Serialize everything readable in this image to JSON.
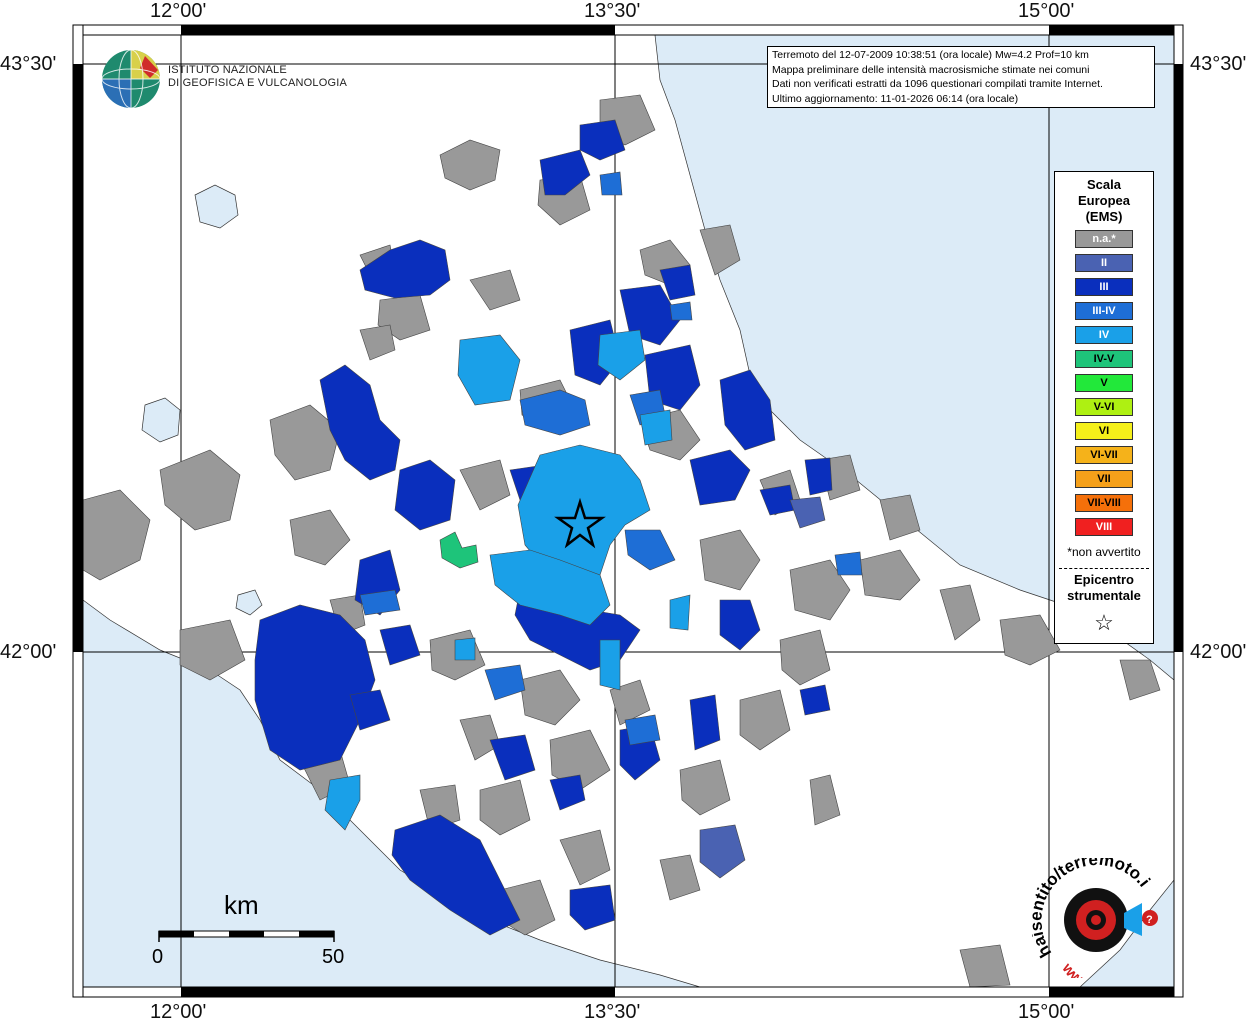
{
  "coords": {
    "top": [
      "12°00'",
      "13°30'",
      "15°00'"
    ],
    "bottom": [
      "12°00'",
      "13°30'",
      "15°00'"
    ],
    "left": [
      "43°30'",
      "42°00'"
    ],
    "right": [
      "43°30'",
      "42°00'"
    ]
  },
  "info": {
    "line1": "Terremoto del 12-07-2009 10:38:51 (ora locale) Mw=4.2 Prof=10 km",
    "line2": "Mappa preliminare delle intensità macrosismiche stimate nei comuni",
    "line3": "Dati non verificati estratti da 1096 questionari compilati tramite Internet.",
    "line4": "Ultimo aggiornamento: 11-01-2026 06:14 (ora locale)"
  },
  "ingv": {
    "line1": "ISTITUTO NAZIONALE",
    "line2": "DI GEOFISICA E VULCANOLOGIA"
  },
  "legend": {
    "title1": "Scala",
    "title2": "Europea",
    "title3": "(EMS)",
    "items": [
      {
        "label": "n.a.*",
        "color": "#999999"
      },
      {
        "label": "II",
        "color": "#4a62b2"
      },
      {
        "label": "III",
        "color": "#0a2fbd"
      },
      {
        "label": "III-IV",
        "color": "#1e6ed6"
      },
      {
        "label": "IV",
        "color": "#1aa0e8"
      },
      {
        "label": "IV-V",
        "color": "#1ec47a"
      },
      {
        "label": "V",
        "color": "#22e83a"
      },
      {
        "label": "V-VI",
        "color": "#aef012"
      },
      {
        "label": "VI",
        "color": "#f5f01a"
      },
      {
        "label": "VI-VII",
        "color": "#f5b21a"
      },
      {
        "label": "VII",
        "color": "#f5a01a"
      },
      {
        "label": "VII-VIII",
        "color": "#f5700a"
      },
      {
        "label": "VIII",
        "color": "#f02020"
      }
    ],
    "note": "*non avvertito",
    "epicentro1": "Epicentro",
    "epicentro2": "strumentale",
    "star": "☆"
  },
  "scale": {
    "unit": "km",
    "min": "0",
    "max": "50"
  },
  "hsi": {
    "text": "haisentito/terremoto.it",
    "www": "www."
  },
  "colors": {
    "sea": "#dcebf7",
    "land": "#ffffff",
    "na": "#999999",
    "ems3": "#0a2fbd",
    "ems34": "#1e6ed6",
    "ems4": "#1aa0e8",
    "ems45": "#1ec47a",
    "ems2": "#4a62b2"
  }
}
